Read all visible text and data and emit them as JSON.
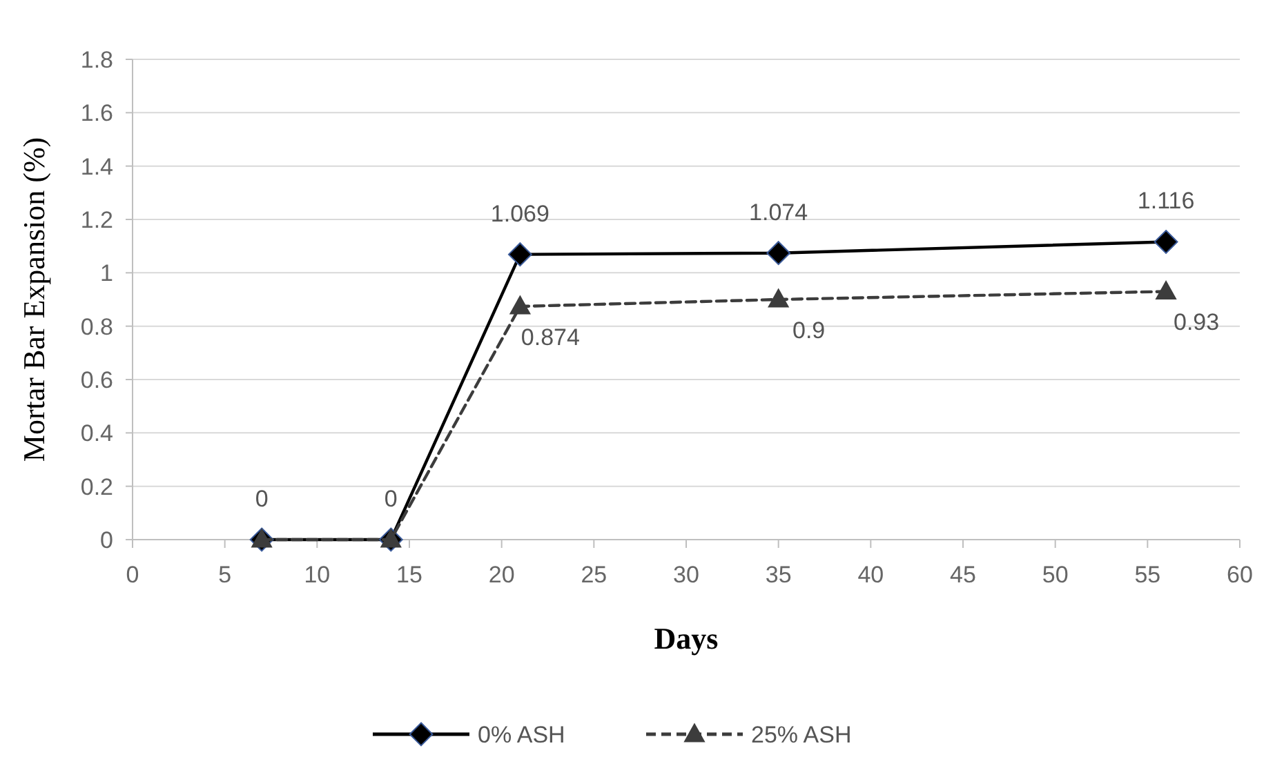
{
  "chart_data": {
    "type": "line",
    "xlabel": "Days",
    "ylabel": "Mortar Bar Expansion (%)",
    "xlim": [
      0,
      60
    ],
    "xticks": [
      0,
      5,
      10,
      15,
      20,
      25,
      30,
      35,
      40,
      45,
      50,
      55,
      60
    ],
    "ylim": [
      0,
      1.8
    ],
    "yticks": [
      0,
      0.2,
      0.4,
      0.6,
      0.8,
      1,
      1.2,
      1.4,
      1.6,
      1.8
    ],
    "grid": "y",
    "legend": "bottom",
    "series": [
      {
        "name": "0% ASH",
        "color": "#000000",
        "marker": "diamond",
        "line_style": "solid",
        "x": [
          7,
          14,
          21,
          35,
          56
        ],
        "values": [
          0,
          0,
          1.069,
          1.074,
          1.116
        ],
        "value_labels": [
          "0",
          "0",
          "1.069",
          "1.074",
          "1.116"
        ]
      },
      {
        "name": "25% ASH",
        "color": "#3c3c3c",
        "marker": "triangle",
        "line_style": "dashed",
        "x": [
          7,
          14,
          21,
          35,
          56
        ],
        "values": [
          0,
          0,
          0.874,
          0.9,
          0.93
        ],
        "value_labels": [
          null,
          null,
          "0.874",
          "0.9",
          "0.93"
        ]
      }
    ]
  }
}
